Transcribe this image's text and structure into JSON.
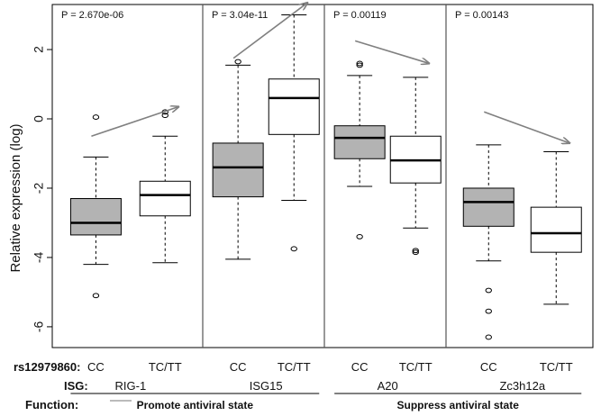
{
  "chart_data": {
    "type": "box",
    "ylabel": "Relative expression (log)",
    "y_ticks": [
      "2",
      "0",
      "-2",
      "-4",
      "-6"
    ],
    "y_tick_values": [
      2,
      0,
      -2,
      -4,
      -6
    ],
    "ylim": [
      -6.6,
      3.3
    ],
    "row_labels": {
      "snp": "rs12979860:",
      "isg": "ISG:",
      "function": "Function:"
    },
    "groups": [
      {
        "isg": "RIG-1",
        "p_value": "P = 2.670e-06",
        "boxes": [
          {
            "genotype": "CC",
            "fill": "#b3b3b3",
            "min": -4.2,
            "q1": -3.35,
            "median": -3.0,
            "q3": -2.3,
            "max": -1.1,
            "outliers": [
              0.05,
              -5.1
            ]
          },
          {
            "genotype": "TC/TT",
            "fill": "#ffffff",
            "min": -4.15,
            "q1": -2.8,
            "median": -2.2,
            "q3": -1.8,
            "max": -0.5,
            "outliers": [
              0.1,
              0.2
            ]
          }
        ]
      },
      {
        "isg": "ISG15",
        "p_value": "P = 3.04e-11",
        "boxes": [
          {
            "genotype": "CC",
            "fill": "#b3b3b3",
            "min": -4.05,
            "q1": -2.25,
            "median": -1.4,
            "q3": -0.7,
            "max": 1.55,
            "outliers": [
              1.65
            ]
          },
          {
            "genotype": "TC/TT",
            "fill": "#ffffff",
            "min": -2.35,
            "q1": -0.45,
            "median": 0.6,
            "q3": 1.15,
            "max": 3.0,
            "outliers": [
              -3.75
            ]
          }
        ]
      },
      {
        "isg": "A20",
        "p_value": "P = 0.00119",
        "boxes": [
          {
            "genotype": "CC",
            "fill": "#b3b3b3",
            "min": -1.95,
            "q1": -1.15,
            "median": -0.55,
            "q3": -0.2,
            "max": 1.25,
            "outliers": [
              1.55,
              1.6,
              -3.4
            ]
          },
          {
            "genotype": "TC/TT",
            "fill": "#ffffff",
            "min": -3.15,
            "q1": -1.85,
            "median": -1.2,
            "q3": -0.5,
            "max": 1.2,
            "outliers": [
              -3.8,
              -3.85
            ]
          }
        ]
      },
      {
        "isg": "Zc3h12a",
        "p_value": "P = 0.00143",
        "boxes": [
          {
            "genotype": "CC",
            "fill": "#b3b3b3",
            "min": -4.1,
            "q1": -3.1,
            "median": -2.4,
            "q3": -2.0,
            "max": -0.75,
            "outliers": [
              -4.95,
              -5.55,
              -6.3
            ]
          },
          {
            "genotype": "TC/TT",
            "fill": "#ffffff",
            "min": -5.35,
            "q1": -3.85,
            "median": -3.3,
            "q3": -2.55,
            "max": -0.95,
            "outliers": []
          }
        ]
      }
    ],
    "function_labels": [
      {
        "text": "Promote antiviral state",
        "groups": [
          0,
          1
        ]
      },
      {
        "text": "Suppress antiviral state",
        "groups": [
          2,
          3
        ]
      }
    ],
    "trend_arrows": [
      {
        "group": 0,
        "from": -0.5,
        "to": 0.35
      },
      {
        "group": 1,
        "from": 1.75,
        "to": 3.35
      },
      {
        "group": 2,
        "from": 2.25,
        "to": 1.6
      },
      {
        "group": 3,
        "from": 0.2,
        "to": -0.7
      }
    ],
    "colors": {
      "cc_box": "#b3b3b3",
      "tc_box": "#ffffff",
      "arrow": "#808080",
      "axis": "#000000"
    }
  }
}
